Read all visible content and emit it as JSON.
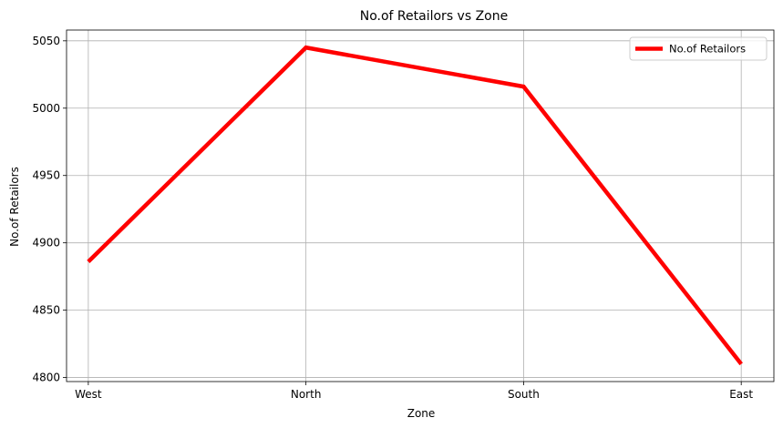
{
  "chart_data": {
    "type": "line",
    "title": "No.of Retailors vs Zone",
    "xlabel": "Zone",
    "ylabel": "No.of Retailors",
    "categories": [
      "West",
      "North",
      "South",
      "East"
    ],
    "series": [
      {
        "name": "No.of Retailors",
        "values": [
          4886,
          5045,
          5016,
          4810
        ],
        "color": "#ff0000"
      }
    ],
    "ylim": [
      4797,
      5058
    ],
    "yticks": [
      4800,
      4850,
      4900,
      4950,
      5000,
      5050
    ],
    "grid": true,
    "legend_position": "top-right"
  }
}
